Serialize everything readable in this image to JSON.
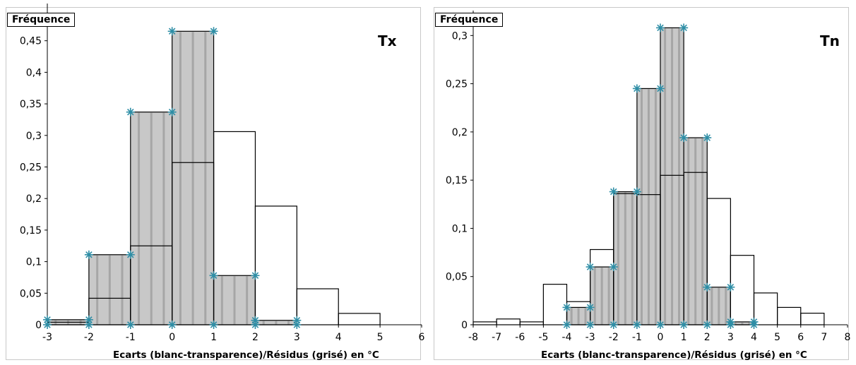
{
  "chart_data": [
    {
      "type": "bar",
      "tag": "Tx",
      "ylabel": "Fréquence",
      "xlabel": "Ecarts (blanc-transparence)/Résidus (grisé) en °C",
      "xlim": [
        -3,
        6
      ],
      "ylim": [
        0,
        0.5
      ],
      "xticks": [
        "-3",
        "-2",
        "-1",
        "0",
        "1",
        "2",
        "3",
        "4",
        "5",
        "6"
      ],
      "yticks": [
        "0",
        "0,05",
        "0,1",
        "0,15",
        "0,2",
        "0,25",
        "0,3",
        "0,35",
        "0,4",
        "0,45"
      ],
      "series": [
        {
          "bins": [
            [
              -3,
              -2
            ],
            [
              -2,
              -1
            ],
            [
              -1,
              0
            ],
            [
              0,
              1
            ],
            [
              1,
              2
            ],
            [
              2,
              3
            ],
            [
              3,
              4
            ],
            [
              4,
              5
            ]
          ],
          "values": [
            0.004,
            0.042,
            0.125,
            0.257,
            0.306,
            0.188,
            0.057,
            0.018
          ]
        },
        {
          "bins": [
            [
              -3,
              -2
            ],
            [
              -2,
              -1
            ],
            [
              -1,
              0
            ],
            [
              0,
              1
            ],
            [
              1,
              2
            ],
            [
              2,
              3
            ]
          ],
          "values": [
            0.008,
            0.111,
            0.337,
            0.465,
            0.078,
            0.007
          ]
        }
      ],
      "markers": [
        [
          -3,
          0
        ],
        [
          -3,
          0.008
        ],
        [
          -2,
          0.008
        ],
        [
          -2,
          0
        ],
        [
          -2,
          0.111
        ],
        [
          -1,
          0.111
        ],
        [
          -1,
          0
        ],
        [
          -1,
          0.337
        ],
        [
          0,
          0.337
        ],
        [
          0,
          0
        ],
        [
          0,
          0.465
        ],
        [
          1,
          0.465
        ],
        [
          1,
          0
        ],
        [
          1,
          0.078
        ],
        [
          2,
          0.078
        ],
        [
          2,
          0
        ],
        [
          2,
          0.007
        ],
        [
          3,
          0.007
        ],
        [
          3,
          0
        ]
      ]
    },
    {
      "type": "bar",
      "tag": "Tn",
      "ylabel": "Fréquence",
      "xlabel": "Ecarts (blanc-transparence)/Résidus (grisé) en °C",
      "xlim": [
        -8,
        8
      ],
      "ylim": [
        0,
        0.32
      ],
      "xticks": [
        "-8",
        "-7",
        "-6",
        "-5",
        "-4",
        "-3",
        "-2",
        "-1",
        "0",
        "1",
        "2",
        "3",
        "4",
        "5",
        "6",
        "7",
        "8"
      ],
      "yticks": [
        "0",
        "0,05",
        "0,1",
        "0,15",
        "0,2",
        "0,25",
        "0,3"
      ],
      "series": [
        {
          "bins": [
            [
              -8,
              -7
            ],
            [
              -7,
              -6
            ],
            [
              -6,
              -5
            ],
            [
              -5,
              -4
            ],
            [
              -4,
              -3
            ],
            [
              -3,
              -2
            ],
            [
              -2,
              -1
            ],
            [
              -1,
              0
            ],
            [
              0,
              1
            ],
            [
              1,
              2
            ],
            [
              2,
              3
            ],
            [
              3,
              4
            ],
            [
              4,
              5
            ],
            [
              5,
              6
            ],
            [
              6,
              7
            ]
          ],
          "values": [
            0.003,
            0.006,
            0.003,
            0.042,
            0.024,
            0.078,
            0.136,
            0.135,
            0.155,
            0.158,
            0.131,
            0.072,
            0.033,
            0.018,
            0.012
          ]
        },
        {
          "bins": [
            [
              -4,
              -3
            ],
            [
              -3,
              -2
            ],
            [
              -2,
              -1
            ],
            [
              -1,
              0
            ],
            [
              0,
              1
            ],
            [
              1,
              2
            ],
            [
              2,
              3
            ],
            [
              3,
              4
            ]
          ],
          "values": [
            0.018,
            0.06,
            0.138,
            0.245,
            0.308,
            0.194,
            0.039,
            0.003
          ]
        }
      ],
      "markers": [
        [
          -4,
          0
        ],
        [
          -4,
          0.018
        ],
        [
          -3,
          0.018
        ],
        [
          -3,
          0
        ],
        [
          -3,
          0.06
        ],
        [
          -2,
          0.06
        ],
        [
          -2,
          0
        ],
        [
          -2,
          0.138
        ],
        [
          -1,
          0.138
        ],
        [
          -1,
          0
        ],
        [
          -1,
          0.245
        ],
        [
          0,
          0.245
        ],
        [
          0,
          0
        ],
        [
          0,
          0.308
        ],
        [
          1,
          0.308
        ],
        [
          1,
          0
        ],
        [
          1,
          0.194
        ],
        [
          2,
          0.194
        ],
        [
          2,
          0
        ],
        [
          2,
          0.039
        ],
        [
          3,
          0.039
        ],
        [
          3,
          0
        ],
        [
          3,
          0.003
        ],
        [
          4,
          0.003
        ],
        [
          4,
          0
        ]
      ]
    }
  ],
  "colors": {
    "residual_fill": "#c8c8c8",
    "residual_stripe": "#a6a6a6",
    "marker": "#2e8ea6",
    "axis": "#000000",
    "grid": "#d9d9d9"
  }
}
